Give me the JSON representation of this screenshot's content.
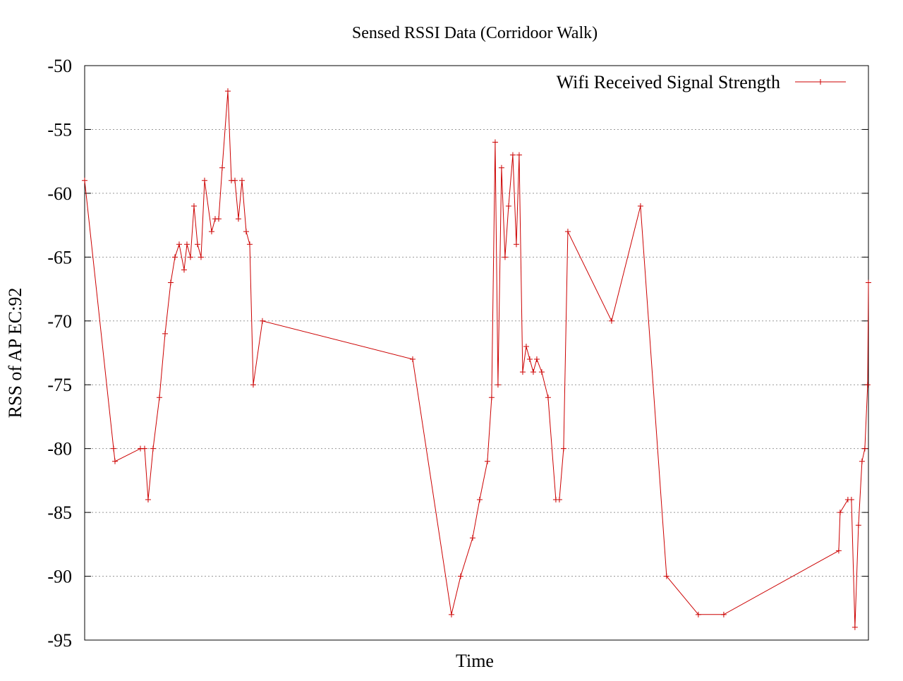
{
  "chart_data": {
    "type": "line",
    "title": "Sensed RSSI Data (Corridoor Walk)",
    "xlabel": "Time",
    "ylabel": "RSS of AP EC:92",
    "ylim": [
      -95,
      -50
    ],
    "yticks": [
      "-50",
      "-55",
      "-60",
      "-65",
      "-70",
      "-75",
      "-80",
      "-85",
      "-90",
      "-95"
    ],
    "xlim": [
      0,
      100
    ],
    "grid": "horizontal dotted",
    "legend_position": "top-right",
    "color": "#cc0000",
    "series": [
      {
        "name": "Wifi Received Signal Strength",
        "x": [
          0,
          3.69,
          3.87,
          7.11,
          7.65,
          8.1,
          8.73,
          9.54,
          10.26,
          10.98,
          11.52,
          12.06,
          12.69,
          13.05,
          13.5,
          13.95,
          14.4,
          14.85,
          15.3,
          16.2,
          16.65,
          17.1,
          17.55,
          18.27,
          18.72,
          19.17,
          19.62,
          20.07,
          20.61,
          21.06,
          21.51,
          22.68,
          41.85,
          46.8,
          47.97,
          49.5,
          50.4,
          51.39,
          51.93,
          52.38,
          52.74,
          53.19,
          53.64,
          54.09,
          54.63,
          55.08,
          55.44,
          55.89,
          56.34,
          56.79,
          57.24,
          57.69,
          58.32,
          59.13,
          60.12,
          60.57,
          61.11,
          61.65,
          67.23,
          70.92,
          74.25,
          78.3,
          81.54,
          96.21,
          96.39,
          97.38,
          97.83,
          98.28,
          98.73,
          99.18,
          99.54,
          99.9,
          100
        ],
        "values": [
          -59,
          -80,
          -81,
          -80,
          -80,
          -84,
          -80,
          -76,
          -71,
          -67,
          -65,
          -64,
          -66,
          -64,
          -65,
          -61,
          -64,
          -65,
          -59,
          -63,
          -62,
          -62,
          -58,
          -52,
          -59,
          -59,
          -62,
          -59,
          -63,
          -64,
          -75,
          -70,
          -73,
          -93,
          -90,
          -87,
          -84,
          -81,
          -76,
          -56,
          -75,
          -58,
          -65,
          -61,
          -57,
          -64,
          -57,
          -74,
          -72,
          -73,
          -74,
          -73,
          -74,
          -76,
          -84,
          -84,
          -80,
          -63,
          -70,
          -61,
          -90,
          -93,
          -93,
          -88,
          -85,
          -84,
          -84,
          -94,
          -86,
          -81,
          -80,
          -75,
          -67
        ]
      }
    ]
  }
}
